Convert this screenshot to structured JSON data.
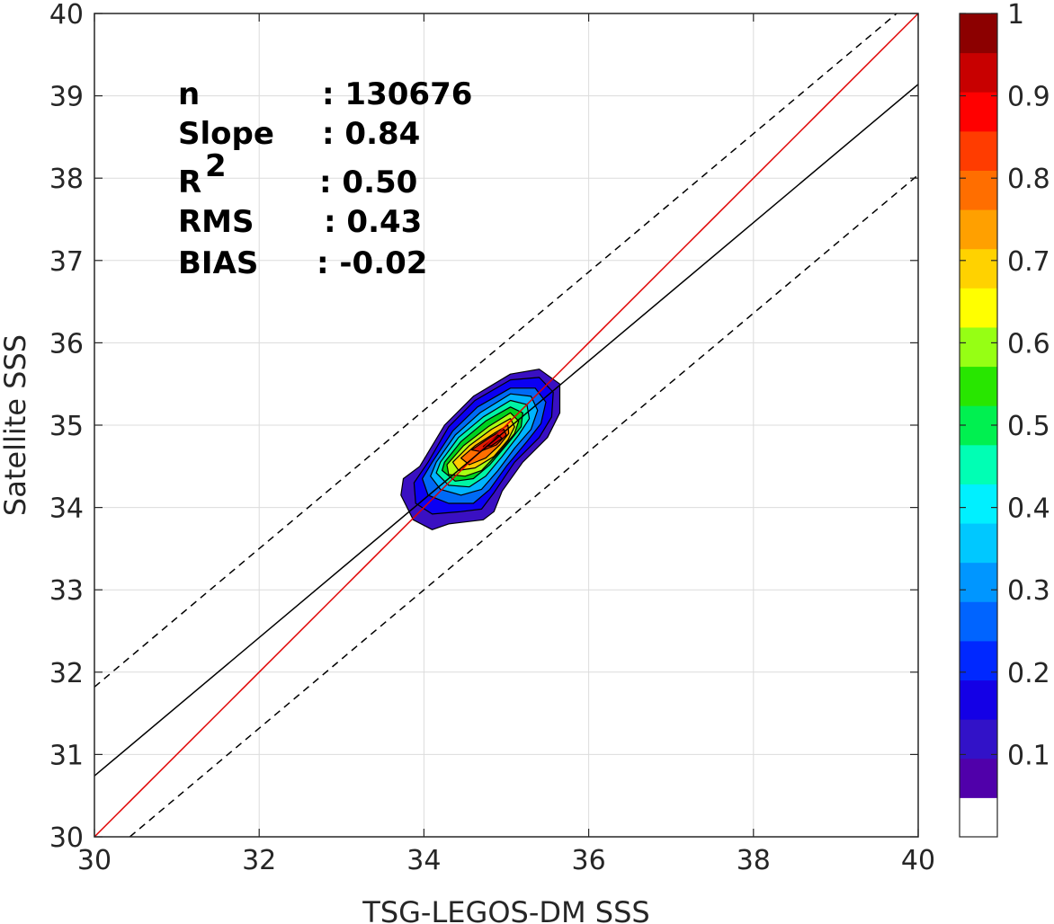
{
  "chart_data": {
    "type": "scatter",
    "subtype": "density-contour",
    "xlabel": "TSG-LEGOS-DM SSS",
    "ylabel": "Satellite SSS",
    "xlim": [
      30,
      40
    ],
    "ylim": [
      30,
      40
    ],
    "xticks": [
      30,
      32,
      34,
      36,
      38,
      40
    ],
    "yticks": [
      30,
      31,
      32,
      33,
      34,
      35,
      36,
      37,
      38,
      39,
      40
    ],
    "grid": true,
    "stats": [
      {
        "label": "n",
        "value": ": 130676"
      },
      {
        "label": "Slope",
        "value": ": 0.84"
      },
      {
        "label": "R",
        "sup": "2",
        "value": ": 0.50"
      },
      {
        "label": "RMS",
        "value": ": 0.43"
      },
      {
        "label": "BIAS",
        "value": ": -0.02"
      }
    ],
    "lines": [
      {
        "kind": "one-to-one",
        "color": "#e00000",
        "style": "solid",
        "x": [
          30,
          40
        ],
        "y": [
          30,
          40
        ]
      },
      {
        "kind": "regression-fit",
        "color": "#000000",
        "style": "solid",
        "x": [
          30,
          40
        ],
        "y": [
          30.74,
          39.14
        ]
      },
      {
        "kind": "upper-bound",
        "color": "#000000",
        "style": "dashed",
        "x": [
          30,
          40
        ],
        "y": [
          31.82,
          40.22
        ]
      },
      {
        "kind": "lower-bound",
        "color": "#000000",
        "style": "dashed",
        "x": [
          30.43,
          40
        ],
        "y": [
          30,
          38.04
        ]
      }
    ],
    "density_peak": {
      "x": 34.9,
      "y": 34.95
    },
    "contour_levels": [
      0.05,
      0.1,
      0.2,
      0.3,
      0.4,
      0.5,
      0.6,
      0.7,
      0.8,
      0.9,
      1.0
    ],
    "contours": [
      {
        "level": 0.05,
        "color": "#3a10c2",
        "points": [
          [
            33.95,
            34.5
          ],
          [
            34.25,
            35.0
          ],
          [
            34.6,
            35.35
          ],
          [
            35.05,
            35.62
          ],
          [
            35.4,
            35.68
          ],
          [
            35.65,
            35.5
          ],
          [
            35.65,
            35.15
          ],
          [
            35.5,
            34.85
          ],
          [
            35.2,
            34.55
          ],
          [
            34.95,
            34.2
          ],
          [
            34.85,
            33.95
          ],
          [
            34.72,
            33.85
          ],
          [
            34.3,
            33.8
          ],
          [
            34.1,
            33.73
          ],
          [
            33.87,
            33.85
          ],
          [
            33.72,
            34.15
          ],
          [
            33.75,
            34.35
          ]
        ]
      },
      {
        "level": 0.1,
        "color": "#0b00f3",
        "points": [
          [
            34.05,
            34.55
          ],
          [
            34.3,
            34.98
          ],
          [
            34.62,
            35.3
          ],
          [
            35.05,
            35.55
          ],
          [
            35.4,
            35.58
          ],
          [
            35.57,
            35.4
          ],
          [
            35.55,
            35.1
          ],
          [
            35.4,
            34.85
          ],
          [
            35.1,
            34.55
          ],
          [
            34.85,
            34.18
          ],
          [
            34.7,
            33.98
          ],
          [
            34.45,
            33.95
          ],
          [
            34.1,
            33.92
          ],
          [
            33.9,
            34.05
          ],
          [
            33.88,
            34.3
          ]
        ]
      },
      {
        "level": 0.2,
        "color": "#006af5",
        "points": [
          [
            34.1,
            34.55
          ],
          [
            34.35,
            34.93
          ],
          [
            34.65,
            35.22
          ],
          [
            35.05,
            35.45
          ],
          [
            35.35,
            35.45
          ],
          [
            35.48,
            35.28
          ],
          [
            35.42,
            35.02
          ],
          [
            35.25,
            34.8
          ],
          [
            35.0,
            34.5
          ],
          [
            34.8,
            34.22
          ],
          [
            34.6,
            34.05
          ],
          [
            34.3,
            34.05
          ],
          [
            34.05,
            34.15
          ],
          [
            33.98,
            34.35
          ]
        ]
      },
      {
        "level": 0.3,
        "color": "#00b4ff",
        "points": [
          [
            34.15,
            34.55
          ],
          [
            34.38,
            34.88
          ],
          [
            34.68,
            35.15
          ],
          [
            35.05,
            35.38
          ],
          [
            35.3,
            35.35
          ],
          [
            35.38,
            35.18
          ],
          [
            35.3,
            34.95
          ],
          [
            35.1,
            34.72
          ],
          [
            34.9,
            34.45
          ],
          [
            34.7,
            34.22
          ],
          [
            34.45,
            34.15
          ],
          [
            34.2,
            34.22
          ],
          [
            34.08,
            34.38
          ]
        ]
      },
      {
        "level": 0.4,
        "color": "#00f5a5",
        "points": [
          [
            34.2,
            34.55
          ],
          [
            34.42,
            34.85
          ],
          [
            34.72,
            35.1
          ],
          [
            35.05,
            35.3
          ],
          [
            35.25,
            35.25
          ],
          [
            35.28,
            35.08
          ],
          [
            35.15,
            34.88
          ],
          [
            34.95,
            34.62
          ],
          [
            34.75,
            34.38
          ],
          [
            34.55,
            34.25
          ],
          [
            34.3,
            34.27
          ],
          [
            34.15,
            34.42
          ]
        ]
      },
      {
        "level": 0.5,
        "color": "#00d21e",
        "points": [
          [
            34.25,
            34.55
          ],
          [
            34.45,
            34.8
          ],
          [
            34.75,
            35.05
          ],
          [
            35.05,
            35.22
          ],
          [
            35.2,
            35.15
          ],
          [
            35.18,
            34.98
          ],
          [
            35.02,
            34.78
          ],
          [
            34.8,
            34.52
          ],
          [
            34.6,
            34.35
          ],
          [
            34.38,
            34.32
          ],
          [
            34.22,
            34.45
          ]
        ]
      },
      {
        "level": 0.6,
        "color": "#aaff14",
        "points": [
          [
            34.28,
            34.52
          ],
          [
            34.48,
            34.75
          ],
          [
            34.78,
            34.98
          ],
          [
            35.05,
            35.15
          ],
          [
            35.15,
            35.05
          ],
          [
            35.1,
            34.9
          ],
          [
            34.92,
            34.68
          ],
          [
            34.7,
            34.45
          ],
          [
            34.5,
            34.38
          ],
          [
            34.3,
            34.4
          ]
        ]
      },
      {
        "level": 0.7,
        "color": "#ffc800",
        "points": [
          [
            34.35,
            34.55
          ],
          [
            34.55,
            34.75
          ],
          [
            34.82,
            34.95
          ],
          [
            35.05,
            35.08
          ],
          [
            35.1,
            34.98
          ],
          [
            35.02,
            34.82
          ],
          [
            34.85,
            34.62
          ],
          [
            34.62,
            34.48
          ],
          [
            34.42,
            34.45
          ]
        ]
      },
      {
        "level": 0.8,
        "color": "#ff6e00",
        "points": [
          [
            34.45,
            34.6
          ],
          [
            34.62,
            34.75
          ],
          [
            34.85,
            34.9
          ],
          [
            35.02,
            35.0
          ],
          [
            35.03,
            34.9
          ],
          [
            34.92,
            34.76
          ],
          [
            34.75,
            34.6
          ],
          [
            34.55,
            34.52
          ]
        ]
      },
      {
        "level": 0.9,
        "color": "#e61e00",
        "points": [
          [
            34.58,
            34.7
          ],
          [
            34.8,
            34.85
          ],
          [
            34.97,
            34.95
          ],
          [
            35.0,
            34.88
          ],
          [
            34.88,
            34.76
          ],
          [
            34.68,
            34.68
          ]
        ]
      },
      {
        "level": 1.0,
        "color": "#d20000",
        "points": [
          [
            34.72,
            34.74
          ],
          [
            34.9,
            34.88
          ],
          [
            34.95,
            34.84
          ],
          [
            34.82,
            34.75
          ]
        ]
      }
    ],
    "colorbar": {
      "ticks": [
        "0.1",
        "0.2",
        "0.3",
        "0.4",
        "0.5",
        "0.6",
        "0.7",
        "0.8",
        "0.9",
        "1"
      ],
      "colors": [
        "#ffffff",
        "#5000aa",
        "#3212c8",
        "#1400e6",
        "#0028ff",
        "#0064ff",
        "#0096ff",
        "#00c8ff",
        "#00f0ff",
        "#00ffb4",
        "#00f050",
        "#28e600",
        "#96ff14",
        "#ffff00",
        "#ffd200",
        "#ffa000",
        "#ff6e00",
        "#ff3c00",
        "#ff0000",
        "#c80000",
        "#8c0000"
      ]
    }
  }
}
